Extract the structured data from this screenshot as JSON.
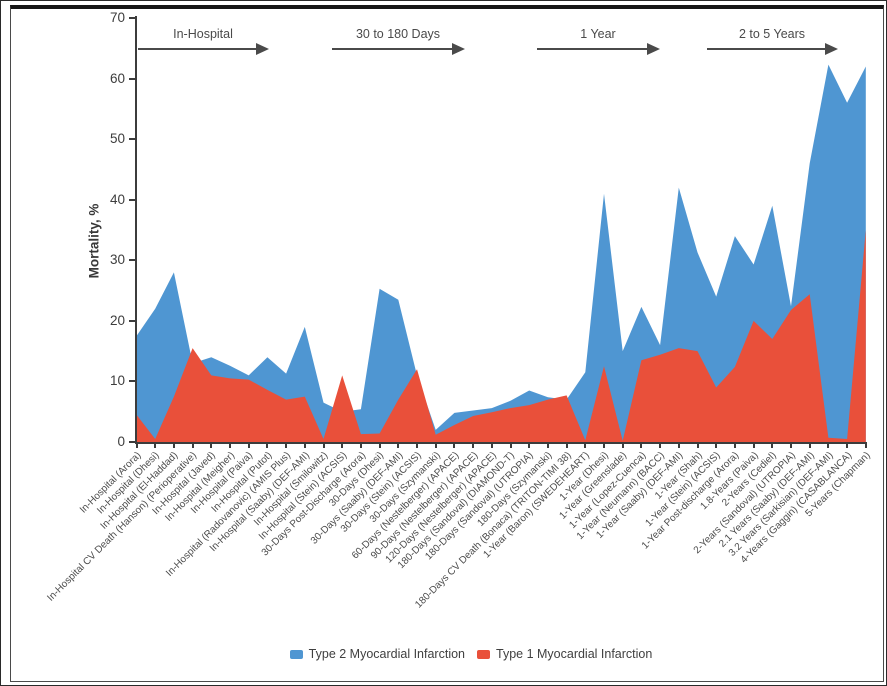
{
  "chart_data": {
    "type": "area",
    "title": "",
    "ylabel": "Mortality, %",
    "xlabel": "",
    "ylim": [
      0,
      70
    ],
    "yticks": [
      0,
      10,
      20,
      30,
      40,
      50,
      60,
      70
    ],
    "grid": false,
    "legend_position": "bottom",
    "categories": [
      "In-Hospital (Arora)",
      "In-Hospital (Dhesi)",
      "In-Hospital (El-Haddad)",
      "In-Hospital CV Death (Hanson) (Perioperative)",
      "In-Hospital (Javed)",
      "In-Hospital (Meigher)",
      "In-Hospital (Paiva)",
      "In-Hospital (Putot)",
      "In-Hospital (Radovanovic) (AMIS Plus)",
      "In-Hospital (Saaby) (DEF-AMI)",
      "In-Hospital (Smilowitz)",
      "In-Hospital (Stein) (ACSIS)",
      "30-Days Post-Discharge (Arora)",
      "30-Days (Dhesi)",
      "30-Days (Saaby) (DEF-AMI)",
      "30-Days (Stein) (ACSIS)",
      "30-Days (Szymanski)",
      "60-Days (Nestelberger) (APACE)",
      "90-Days (Nestelberger) (APACE)",
      "120-Days (Nestelberger) (APACE)",
      "180-Days (Sandoval) (DIAMOND-T)",
      "180-Days (Sandoval) (UTROPIA)",
      "180-Days (Szymanski)",
      "180-Days CV Death (Bonaca) (TRITON-TIMI 38)",
      "1-Year (Baron) (SWEDEHEART)",
      "1-Year (Dhesi)",
      "1-Year (Greenslade)",
      "1-Year (Lopez-Cuenca)",
      "1-Year (Neumann) (BACC)",
      "1-Year (Saaby) (DEF-AMI)",
      "1-Year (Shah)",
      "1-Year (Stein) (ACSIS)",
      "1-Year Post-discharge (Arora)",
      "1.8-Years (Paiva)",
      "2-Years (Cediel)",
      "2-Years (Sandoval) (UTROPIA)",
      "2.1 Years (Saaby) (DEF-AMI)",
      "3.2 Years (Sarkisian) (DEF-AMI)",
      "4-Years (Gaggin) (CASABLANCA)",
      "5-Years (Chapman)"
    ],
    "series": [
      {
        "name": "Type 2 Myocardial Infarction",
        "color": "#4F96D2",
        "values": [
          17.5,
          22,
          28,
          13,
          14,
          12.6,
          11,
          14,
          11.3,
          19,
          6.5,
          5,
          5.4,
          25.3,
          23.5,
          11,
          2,
          4.8,
          5.2,
          5.6,
          6.8,
          8.5,
          7.4,
          7,
          11.5,
          41,
          15,
          22.3,
          16,
          42,
          31.3,
          24,
          34,
          29.3,
          39,
          22.4,
          46,
          62.3,
          56,
          62
        ]
      },
      {
        "name": "Type 1 Myocardial Infarction",
        "color": "#E9503A",
        "values": [
          4.5,
          0.5,
          7.5,
          15.5,
          11,
          10.5,
          10.3,
          8.6,
          7,
          7.5,
          0.5,
          11,
          1.3,
          1.4,
          7,
          12,
          1.2,
          2.8,
          4.3,
          4.9,
          5.6,
          6.1,
          7,
          7.7,
          0.3,
          12.5,
          0.2,
          13.5,
          14.4,
          15.5,
          15,
          9,
          12.4,
          20,
          17,
          21.8,
          24.4,
          0.7,
          0.5,
          35
        ]
      }
    ],
    "groups": [
      {
        "label": "In-Hospital",
        "from": 0,
        "to": 11
      },
      {
        "label": "30 to 180 Days",
        "from": 12,
        "to": 23
      },
      {
        "label": "1 Year",
        "from": 24,
        "to": 32
      },
      {
        "label": "2 to 5 Years",
        "from": 33,
        "to": 39
      }
    ]
  }
}
